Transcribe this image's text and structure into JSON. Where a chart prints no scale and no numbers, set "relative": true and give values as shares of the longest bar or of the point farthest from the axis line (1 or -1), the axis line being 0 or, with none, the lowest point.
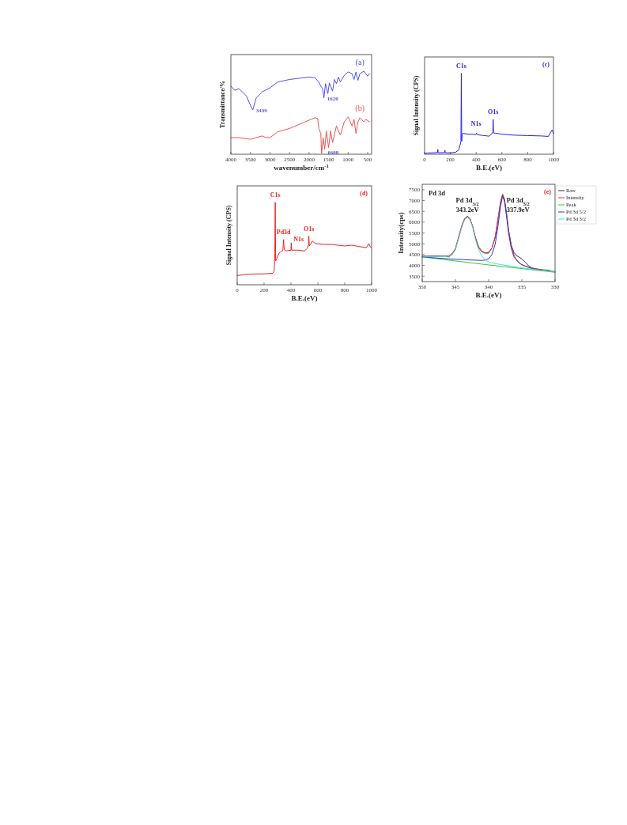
{
  "chart_data": [
    {
      "type": "line",
      "relative": true,
      "xlabel": "wavenumber/cm$^{-1}$",
      "ylabel": "Transmittance/%",
      "xlim": [
        4000,
        400
      ],
      "xticks": [
        4000,
        3500,
        3000,
        2500,
        2000,
        1500,
        1000,
        500
      ],
      "tick_labels": "x",
      "grid": false,
      "legend": false,
      "series": [
        {
          "name": "(a)",
          "color": "#5050e8",
          "x": [
            4000,
            3900,
            3800,
            3700,
            3600,
            3500,
            3439,
            3350,
            3200,
            3000,
            2800,
            2500,
            2000,
            1850,
            1750,
            1700,
            1650,
            1620,
            1580,
            1520,
            1480,
            1400,
            1350,
            1300,
            1250,
            1200,
            1100,
            1000,
            900,
            850,
            800,
            750,
            700,
            600,
            500,
            450
          ],
          "values": [
            0.82,
            0.77,
            0.79,
            0.75,
            0.7,
            0.59,
            0.535,
            0.68,
            0.75,
            0.8,
            0.87,
            0.9,
            0.93,
            0.92,
            0.87,
            0.82,
            0.79,
            0.68,
            0.85,
            0.73,
            0.86,
            0.76,
            0.9,
            0.85,
            0.93,
            0.87,
            0.95,
            0.99,
            0.97,
            0.9,
            0.99,
            0.89,
            0.97,
            1,
            0.94,
            0.97
          ]
        },
        {
          "name": "(b)",
          "color": "#ee5555",
          "x": [
            4000,
            3800,
            3500,
            3200,
            3100,
            3000,
            2800,
            2500,
            2000,
            1850,
            1780,
            1750,
            1700,
            1680,
            1640,
            1600,
            1560,
            1500,
            1450,
            1400,
            1300,
            1200,
            1100,
            1000,
            900,
            850,
            800,
            750,
            700,
            600,
            550,
            450
          ],
          "values": [
            0.2,
            0.2,
            0.18,
            0.22,
            0.2,
            0.2,
            0.27,
            0.31,
            0.41,
            0.44,
            0.43,
            0.31,
            0.25,
            0.01,
            0.2,
            0.06,
            0.28,
            0.08,
            0.28,
            0.14,
            0.34,
            0.23,
            0.39,
            0.45,
            0.34,
            0.42,
            0.25,
            0.39,
            0.44,
            0.39,
            0.42,
            0.39
          ]
        }
      ],
      "annotations": [
        {
          "text": "3439",
          "x": 3439,
          "y": 0.535
        },
        {
          "text": "1620",
          "x": 1620,
          "y": 0.68
        },
        {
          "text": "1608",
          "x": 1608,
          "y": 0.03
        }
      ]
    },
    {
      "type": "line",
      "relative": true,
      "xlabel": "B.E.(eV)",
      "ylabel": "Signal Intensity (CPS)",
      "xlim": [
        0,
        1000
      ],
      "xticks": [
        0,
        200,
        400,
        600,
        800,
        1000
      ],
      "tick_labels": "x",
      "grid": false,
      "legend": false,
      "series": [
        {
          "color": "#2222ee",
          "x": [
            0,
            20,
            100,
            103,
            106,
            155,
            158,
            161,
            200,
            240,
            265,
            275,
            282,
            285,
            288,
            292,
            300,
            350,
            400,
            402,
            410,
            450,
            500,
            520,
            530,
            532,
            535,
            550,
            600,
            700,
            800,
            900,
            960,
            980,
            990,
            1000
          ],
          "values": [
            0.01,
            0.015,
            0.02,
            0.06,
            0.018,
            0.02,
            0.05,
            0.018,
            0.018,
            0.024,
            0.054,
            0.11,
            0.16,
            1,
            0.16,
            0.25,
            0.256,
            0.247,
            0.244,
            0.26,
            0.241,
            0.232,
            0.223,
            0.247,
            0.277,
            0.43,
            0.262,
            0.26,
            0.247,
            0.235,
            0.23,
            0.226,
            0.22,
            0.277,
            0.3,
            0.256
          ]
        }
      ],
      "annotations": [
        {
          "text": "C1s",
          "x": 285,
          "y": 1
        },
        {
          "text": "N1s",
          "x": 400,
          "y": 0.28
        },
        {
          "text": "O1s",
          "x": 532,
          "y": 0.43
        },
        "(c)"
      ]
    },
    {
      "type": "line",
      "relative": true,
      "xlabel": "B.E.(eV)",
      "ylabel": "Signal Intensity (CPS)",
      "xlim": [
        0,
        1000
      ],
      "xticks": [
        0,
        200,
        400,
        600,
        800,
        1000
      ],
      "tick_labels": "x",
      "grid": false,
      "legend": false,
      "series": [
        {
          "color": "#ee2222",
          "x": [
            0,
            50,
            100,
            200,
            265,
            275,
            280,
            283,
            286,
            295,
            310,
            330,
            340,
            345,
            350,
            360,
            400,
            402,
            405,
            450,
            500,
            520,
            530,
            533,
            537,
            560,
            580,
            650,
            700,
            800,
            850,
            960,
            980,
            990,
            1000
          ],
          "values": [
            0.112,
            0.121,
            0.13,
            0.133,
            0.14,
            0.17,
            0.38,
            1,
            0.29,
            0.32,
            0.38,
            0.41,
            0.42,
            0.55,
            0.43,
            0.41,
            0.42,
            0.51,
            0.42,
            0.42,
            0.41,
            0.44,
            0.48,
            0.59,
            0.47,
            0.53,
            0.5,
            0.49,
            0.49,
            0.47,
            0.48,
            0.45,
            0.5,
            0.46,
            0.45
          ]
        }
      ],
      "annotations": [
        {
          "text": "C1s",
          "x": 283,
          "y": 1
        },
        {
          "text": "Pd3d",
          "x": 345,
          "y": 0.55
        },
        {
          "text": "N1s",
          "x": 402,
          "y": 0.51
        },
        {
          "text": "O1s",
          "x": 533,
          "y": 0.59
        },
        "(d)"
      ]
    },
    {
      "type": "line",
      "xlabel": "B.E.(eV)",
      "ylabel": "Intensity(cps)",
      "xlim": [
        350,
        330
      ],
      "xticks": [
        350,
        345,
        340,
        335,
        330
      ],
      "ylim": [
        3250,
        7750
      ],
      "yticks": [
        3500,
        4000,
        4500,
        5000,
        5500,
        6000,
        6500,
        7000,
        7500
      ],
      "grid": false,
      "legend": "right",
      "series": [
        {
          "name": "Raw",
          "color": "#333333",
          "x": [
            350,
            348,
            346.5,
            346,
            345.5,
            345,
            344.5,
            344,
            343.6,
            343.2,
            342.8,
            342.4,
            342,
            341.5,
            341,
            340.5,
            340,
            339.5,
            339,
            338.6,
            338.2,
            337.9,
            337.6,
            337.3,
            337,
            336.6,
            336.2,
            335.8,
            335.4,
            335,
            334.5,
            334,
            333.5,
            333,
            332,
            331,
            330
          ],
          "values": [
            4420,
            4430,
            4430,
            4390,
            4500,
            4750,
            5300,
            5850,
            6150,
            6280,
            6150,
            5800,
            5300,
            4850,
            4650,
            4580,
            4600,
            4800,
            5300,
            6100,
            6900,
            7290,
            7050,
            6400,
            5650,
            4950,
            4600,
            4450,
            4380,
            4300,
            4150,
            3980,
            3880,
            3850,
            3800,
            3780,
            3700
          ]
        },
        {
          "name": "Intensity",
          "color": "#ee3333",
          "x": [
            350,
            348,
            346,
            345.5,
            345,
            344.5,
            344,
            343.6,
            343.2,
            342.8,
            342.4,
            342,
            341.5,
            341,
            340.5,
            340,
            339.5,
            339,
            338.6,
            338.2,
            337.9,
            337.6,
            337.3,
            337,
            336.6,
            336.2,
            335.8,
            335.4,
            335,
            334,
            333,
            332
          ],
          "values": [
            4420,
            4430,
            4450,
            4550,
            4780,
            5350,
            5880,
            6180,
            6260,
            6150,
            5800,
            5280,
            4800,
            4620,
            4560,
            4560,
            4800,
            5350,
            6150,
            6950,
            7250,
            7000,
            6350,
            5600,
            4900,
            4500,
            4250,
            4100,
            4030,
            3920,
            3840,
            3790
          ]
        },
        {
          "name": "Peak",
          "color": "#33cc33",
          "x": [
            350,
            340,
            330
          ],
          "values": [
            4390,
            4020,
            3680
          ]
        },
        {
          "name": "Pd 3d 5/2",
          "color": "#3333cc",
          "x": [
            350,
            346,
            344,
            342,
            341,
            340.5,
            340,
            339.5,
            339,
            338.6,
            338.2,
            337.9,
            337.6,
            337.3,
            337,
            336.6,
            336.2,
            336,
            335.5,
            335,
            334,
            333,
            332
          ],
          "values": [
            4390,
            4300,
            4270,
            4240,
            4230,
            4250,
            4300,
            4500,
            5000,
            5800,
            6750,
            7200,
            6950,
            6250,
            5500,
            4800,
            4400,
            4330,
            4150,
            4030,
            3900,
            3810,
            3760
          ]
        },
        {
          "name": "Pd 3d 3/2",
          "color": "#44e0e0",
          "x": [
            350,
            348,
            346,
            345.5,
            345,
            344.5,
            344,
            343.6,
            343.2,
            342.8,
            342.4,
            342,
            341.5,
            341,
            340.5,
            340,
            339,
            338,
            336,
            334,
            332,
            330
          ],
          "values": [
            4390,
            4400,
            4420,
            4500,
            4720,
            5250,
            5800,
            6120,
            6220,
            6100,
            5750,
            5200,
            4720,
            4420,
            4250,
            4160,
            4080,
            4030,
            3930,
            3840,
            3770,
            3720
          ]
        }
      ],
      "annotations": [
        {
          "text": "Pd 3d$_{3/2}$\n343.2eV",
          "x": 343.2,
          "y": 6260
        },
        {
          "text": "Pd 3d$_{5/2}$\n337.9eV",
          "x": 337.9,
          "y": 7290
        },
        "Pd 3d",
        "(e)"
      ]
    }
  ]
}
